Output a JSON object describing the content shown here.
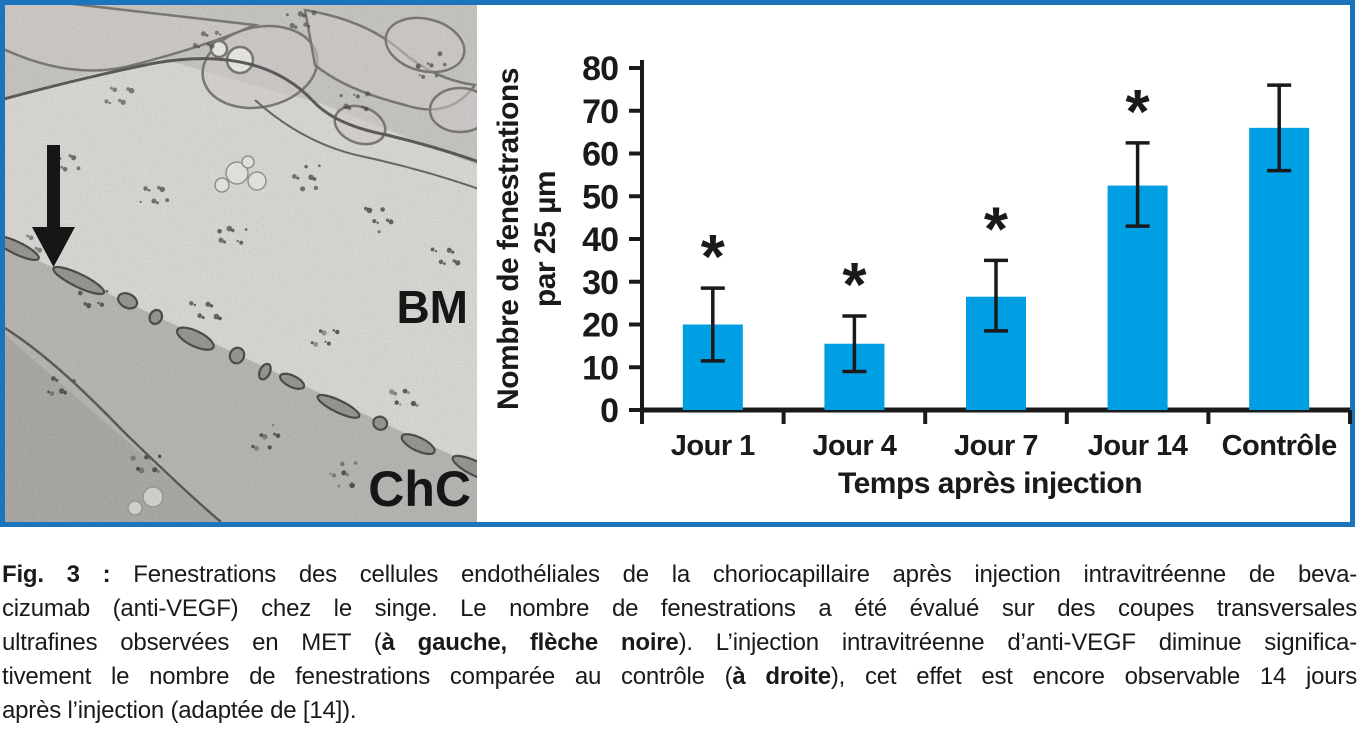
{
  "figure": {
    "border_color": "#1C75BC",
    "em_image": {
      "description_icon": "electron-micrograph",
      "arrow_icon": "black-down-arrow",
      "labels": {
        "bm": "BM",
        "chc": "ChC"
      }
    }
  },
  "chart_data": {
    "type": "bar",
    "title": "",
    "categories": [
      "Jour 1",
      "Jour 4",
      "Jour 7",
      "Jour 14",
      "Contrôle"
    ],
    "values": [
      20,
      15.5,
      26.5,
      52.5,
      66
    ],
    "error_minus": [
      8.5,
      6.5,
      8,
      9.5,
      10
    ],
    "error_plus": [
      8.5,
      6.5,
      8.5,
      10,
      10
    ],
    "significance": [
      true,
      true,
      true,
      true,
      false
    ],
    "significance_marker": "*",
    "xlabel": "Temps après injection",
    "ylabel_line1": "Nombre de fenestrations",
    "ylabel_line2": "par 25 µm",
    "ylim": [
      0,
      80
    ],
    "ytick_step": 10,
    "yticks": [
      0,
      10,
      20,
      30,
      40,
      50,
      60,
      70,
      80
    ],
    "grid": false,
    "legend": null,
    "bar_color": "#009FE3",
    "axis_color": "#1a1a1a"
  },
  "caption": {
    "lines": [
      [
        {
          "text": "Fig. 3 : ",
          "bold": true
        },
        {
          "text": "Fenestrations des cellules endothéliales de la choriocapillaire après injection intravitréenne de beva-",
          "bold": false
        }
      ],
      [
        {
          "text": "cizumab (anti-VEGF) chez le singe. Le nombre de fenestrations a été évalué sur des coupes transversales",
          "bold": false
        }
      ],
      [
        {
          "text": "ultrafines observées en MET (",
          "bold": false
        },
        {
          "text": "à gauche, flèche noire",
          "bold": true
        },
        {
          "text": "). L’injection intravitréenne d’anti-VEGF diminue significa-",
          "bold": false
        }
      ],
      [
        {
          "text": "tivement le nombre de fenestrations comparée au contrôle (",
          "bold": false
        },
        {
          "text": "à droite",
          "bold": true
        },
        {
          "text": "), cet effet est encore observable 14 jours",
          "bold": false
        }
      ],
      [
        {
          "text": "après l’injection (adaptée de [14]).",
          "bold": false
        }
      ]
    ]
  }
}
